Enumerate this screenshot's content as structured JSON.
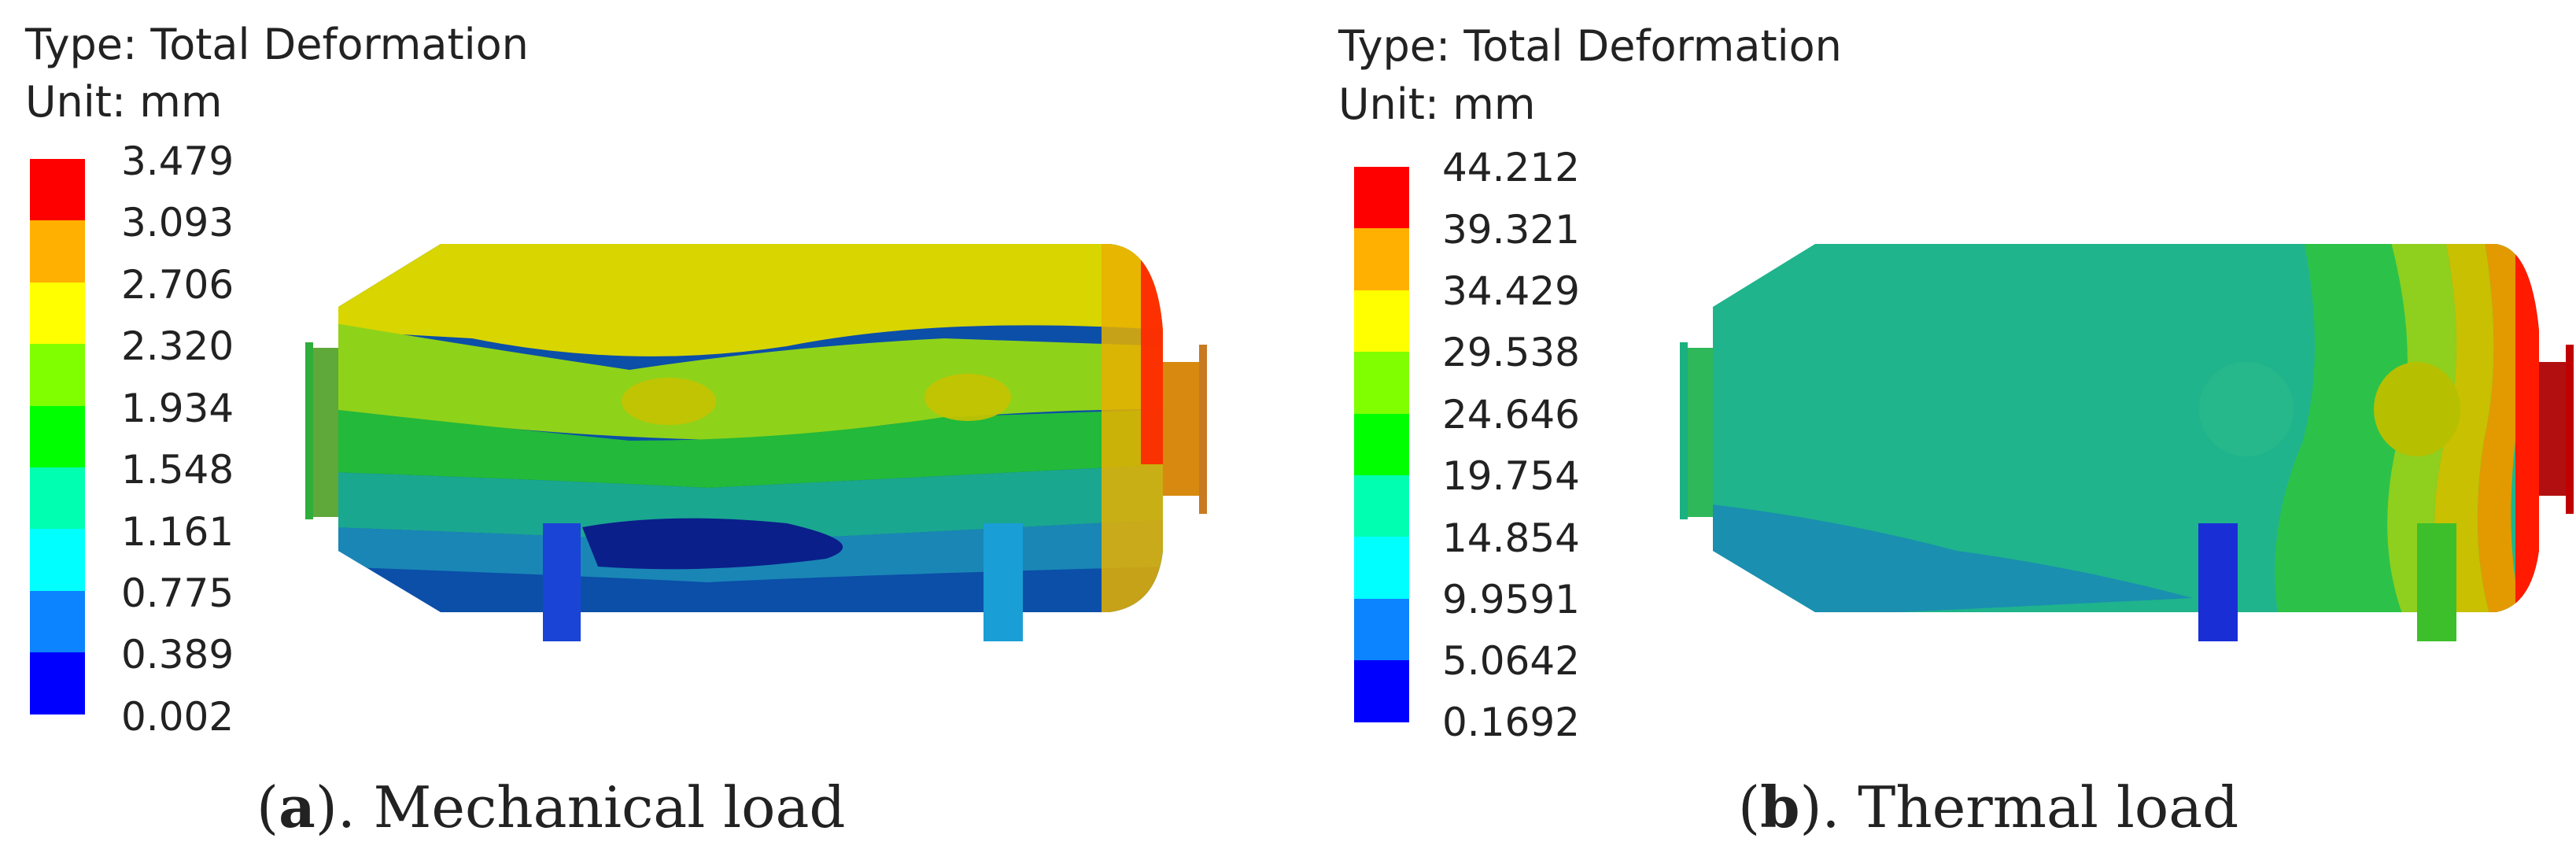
{
  "colors": {
    "contour": [
      "#0000ff",
      "#0d84ff",
      "#00ffff",
      "#00ffb0",
      "#00ff00",
      "#7fff00",
      "#ffff00",
      "#ffb000",
      "#ff0000"
    ]
  },
  "panels": [
    {
      "type_label": "Type: Total Deformation",
      "unit_label": "Unit: mm",
      "legend_values": [
        "3.479",
        "3.093",
        "2.706",
        "2.320",
        "1.934",
        "1.548",
        "1.161",
        "0.775",
        "0.389",
        "0.002"
      ],
      "caption_letter": "a",
      "caption_text": "). Mechanical load"
    },
    {
      "type_label": "Type: Total Deformation",
      "unit_label": "Unit: mm",
      "legend_values": [
        "44.212",
        "39.321",
        "34.429",
        "29.538",
        "24.646",
        "19.754",
        "14.854",
        "9.9591",
        "5.0642",
        "0.1692"
      ],
      "caption_letter": "b",
      "caption_text": "). Thermal load"
    }
  ]
}
